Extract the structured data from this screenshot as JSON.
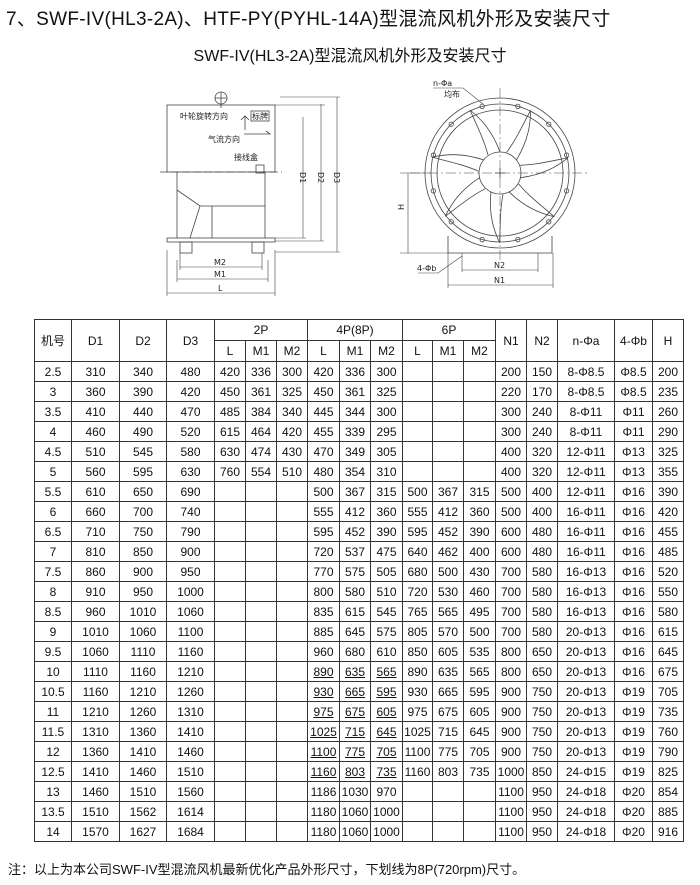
{
  "title": "7、SWF-IV(HL3-2A)、HTF-PY(PYHL-14A)型混流风机外形及安装尺寸",
  "subtitle": "SWF-IV(HL3-2A)型混流风机外形及安装尺寸",
  "drawing": {
    "side_view": {
      "impeller_rotation": "叶轮旋转方向",
      "nameplate": "标牌",
      "airflow": "气流方向",
      "junction_box": "接线盒",
      "d1": "D1",
      "d2": "D2",
      "d3": "D3",
      "m2": "M2",
      "m1": "M1",
      "l": "L"
    },
    "front_view": {
      "holes": "n-Φa",
      "holes_note": "均布",
      "foot_holes": "4-Φb",
      "h": "H",
      "n2": "N2",
      "n1": "N1"
    }
  },
  "table": {
    "headers": {
      "model": "机号",
      "d1": "D1",
      "d2": "D2",
      "d3": "D3",
      "group_2p": "2P",
      "group_4p": "4P(8P)",
      "group_6p": "6P",
      "sub": [
        "L",
        "M1",
        "M2",
        "L",
        "M1",
        "M2",
        "L",
        "M1",
        "M2"
      ],
      "n1": "N1",
      "n2": "N2",
      "na": "n-Φa",
      "fb": "4-Φb",
      "h": "H"
    },
    "rows": [
      {
        "cells": [
          "2.5",
          "310",
          "340",
          "480",
          "420",
          "336",
          "300",
          "420",
          "336",
          "300",
          "",
          "",
          "",
          "200",
          "150",
          "8-Φ8.5",
          "Φ8.5",
          "200"
        ],
        "underline_4p": false
      },
      {
        "cells": [
          "3",
          "360",
          "390",
          "420",
          "450",
          "361",
          "325",
          "450",
          "361",
          "325",
          "",
          "",
          "",
          "220",
          "170",
          "8-Φ8.5",
          "Φ8.5",
          "235"
        ],
        "underline_4p": false
      },
      {
        "cells": [
          "3.5",
          "410",
          "440",
          "470",
          "485",
          "384",
          "340",
          "445",
          "344",
          "300",
          "",
          "",
          "",
          "300",
          "240",
          "8-Φ11",
          "Φ11",
          "260"
        ],
        "underline_4p": false
      },
      {
        "cells": [
          "4",
          "460",
          "490",
          "520",
          "615",
          "464",
          "420",
          "455",
          "339",
          "295",
          "",
          "",
          "",
          "300",
          "240",
          "8-Φ11",
          "Φ11",
          "290"
        ],
        "underline_4p": false
      },
      {
        "cells": [
          "4.5",
          "510",
          "545",
          "580",
          "630",
          "474",
          "430",
          "470",
          "349",
          "305",
          "",
          "",
          "",
          "400",
          "320",
          "12-Φ11",
          "Φ13",
          "325"
        ],
        "underline_4p": false
      },
      {
        "cells": [
          "5",
          "560",
          "595",
          "630",
          "760",
          "554",
          "510",
          "480",
          "354",
          "310",
          "",
          "",
          "",
          "400",
          "320",
          "12-Φ11",
          "Φ13",
          "355"
        ],
        "underline_4p": false
      },
      {
        "cells": [
          "5.5",
          "610",
          "650",
          "690",
          "",
          "",
          "",
          "500",
          "367",
          "315",
          "500",
          "367",
          "315",
          "500",
          "400",
          "12-Φ11",
          "Φ16",
          "390"
        ],
        "underline_4p": false
      },
      {
        "cells": [
          "6",
          "660",
          "700",
          "740",
          "",
          "",
          "",
          "555",
          "412",
          "360",
          "555",
          "412",
          "360",
          "500",
          "400",
          "16-Φ11",
          "Φ16",
          "420"
        ],
        "underline_4p": false
      },
      {
        "cells": [
          "6.5",
          "710",
          "750",
          "790",
          "",
          "",
          "",
          "595",
          "452",
          "390",
          "595",
          "452",
          "390",
          "600",
          "480",
          "16-Φ11",
          "Φ16",
          "455"
        ],
        "underline_4p": false
      },
      {
        "cells": [
          "7",
          "810",
          "850",
          "900",
          "",
          "",
          "",
          "720",
          "537",
          "475",
          "640",
          "462",
          "400",
          "600",
          "480",
          "16-Φ11",
          "Φ16",
          "485"
        ],
        "underline_4p": false
      },
      {
        "cells": [
          "7.5",
          "860",
          "900",
          "950",
          "",
          "",
          "",
          "770",
          "575",
          "505",
          "680",
          "500",
          "430",
          "700",
          "580",
          "16-Φ13",
          "Φ16",
          "520"
        ],
        "underline_4p": false
      },
      {
        "cells": [
          "8",
          "910",
          "950",
          "1000",
          "",
          "",
          "",
          "800",
          "580",
          "510",
          "720",
          "530",
          "460",
          "700",
          "580",
          "16-Φ13",
          "Φ16",
          "550"
        ],
        "underline_4p": false
      },
      {
        "cells": [
          "8.5",
          "960",
          "1010",
          "1060",
          "",
          "",
          "",
          "835",
          "615",
          "545",
          "765",
          "565",
          "495",
          "700",
          "580",
          "16-Φ13",
          "Φ16",
          "580"
        ],
        "underline_4p": false
      },
      {
        "cells": [
          "9",
          "1010",
          "1060",
          "1100",
          "",
          "",
          "",
          "885",
          "645",
          "575",
          "805",
          "570",
          "500",
          "700",
          "580",
          "20-Φ13",
          "Φ16",
          "615"
        ],
        "underline_4p": false
      },
      {
        "cells": [
          "9.5",
          "1060",
          "1110",
          "1160",
          "",
          "",
          "",
          "960",
          "680",
          "610",
          "850",
          "605",
          "535",
          "800",
          "650",
          "20-Φ13",
          "Φ16",
          "645"
        ],
        "underline_4p": false
      },
      {
        "cells": [
          "10",
          "1110",
          "1160",
          "1210",
          "",
          "",
          "",
          "890",
          "635",
          "565",
          "890",
          "635",
          "565",
          "800",
          "650",
          "20-Φ13",
          "Φ16",
          "675"
        ],
        "underline_4p": true
      },
      {
        "cells": [
          "10.5",
          "1160",
          "1210",
          "1260",
          "",
          "",
          "",
          "930",
          "665",
          "595",
          "930",
          "665",
          "595",
          "900",
          "750",
          "20-Φ13",
          "Φ19",
          "705"
        ],
        "underline_4p": true
      },
      {
        "cells": [
          "11",
          "1210",
          "1260",
          "1310",
          "",
          "",
          "",
          "975",
          "675",
          "605",
          "975",
          "675",
          "605",
          "900",
          "750",
          "20-Φ13",
          "Φ19",
          "735"
        ],
        "underline_4p": true
      },
      {
        "cells": [
          "11.5",
          "1310",
          "1360",
          "1410",
          "",
          "",
          "",
          "1025",
          "715",
          "645",
          "1025",
          "715",
          "645",
          "900",
          "750",
          "20-Φ13",
          "Φ19",
          "760"
        ],
        "underline_4p": true
      },
      {
        "cells": [
          "12",
          "1360",
          "1410",
          "1460",
          "",
          "",
          "",
          "1100",
          "775",
          "705",
          "1100",
          "775",
          "705",
          "900",
          "750",
          "20-Φ13",
          "Φ19",
          "790"
        ],
        "underline_4p": true
      },
      {
        "cells": [
          "12.5",
          "1410",
          "1460",
          "1510",
          "",
          "",
          "",
          "1160",
          "803",
          "735",
          "1160",
          "803",
          "735",
          "1000",
          "850",
          "24-Φ15",
          "Φ19",
          "825"
        ],
        "underline_4p": true
      },
      {
        "cells": [
          "13",
          "1460",
          "1510",
          "1560",
          "",
          "",
          "",
          "1186",
          "1030",
          "970",
          "",
          "",
          "",
          "1100",
          "950",
          "24-Φ18",
          "Φ20",
          "854"
        ],
        "underline_4p": false
      },
      {
        "cells": [
          "13.5",
          "1510",
          "1562",
          "1614",
          "",
          "",
          "",
          "1180",
          "1060",
          "1000",
          "",
          "",
          "",
          "1100",
          "950",
          "24-Φ18",
          "Φ20",
          "885"
        ],
        "underline_4p": false
      },
      {
        "cells": [
          "14",
          "1570",
          "1627",
          "1684",
          "",
          "",
          "",
          "1180",
          "1060",
          "1000",
          "",
          "",
          "",
          "1100",
          "950",
          "24-Φ18",
          "Φ20",
          "916"
        ],
        "underline_4p": false
      }
    ]
  },
  "note": "注：以上为本公司SWF-IV型混流风机最新优化产品外形尺寸，下划线为8P(720rpm)尺寸。"
}
